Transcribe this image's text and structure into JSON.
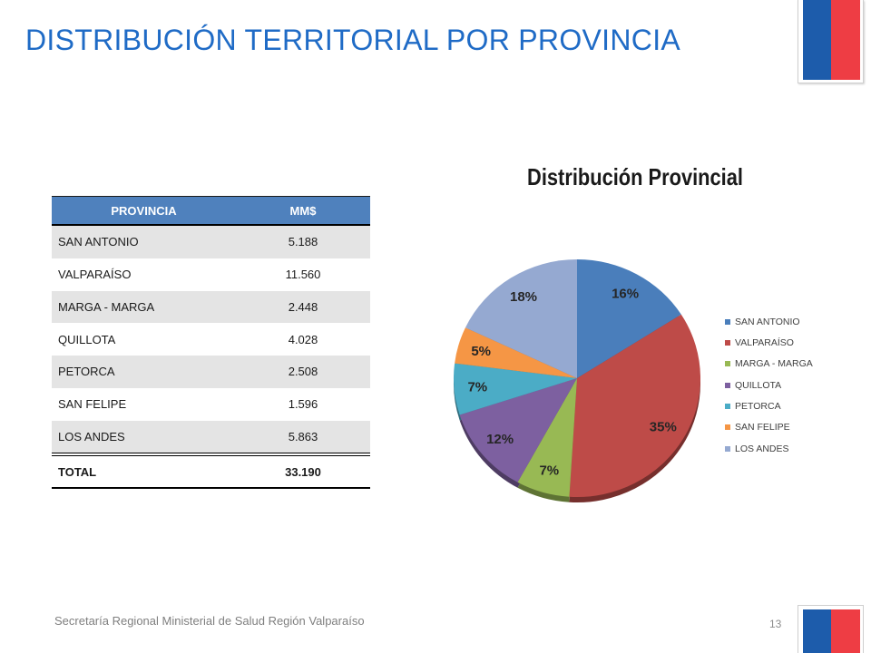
{
  "slide": {
    "title": "DISTRIBUCIÓN TERRITORIAL POR PROVINCIA"
  },
  "theme": {
    "accent": "#1F6BC6",
    "flag_blue": "#1D5CAB",
    "flag_red": "#EE3D44",
    "table_header": "#4F81BD",
    "table_band": "#E4E4E4"
  },
  "table": {
    "headers": [
      "PROVINCIA",
      "MM$"
    ],
    "rows": [
      [
        "SAN ANTONIO",
        "5.188"
      ],
      [
        "VALPARAÍSO",
        "11.560"
      ],
      [
        "MARGA - MARGA",
        "2.448"
      ],
      [
        "QUILLOTA",
        "4.028"
      ],
      [
        "PETORCA",
        "2.508"
      ],
      [
        "SAN FELIPE",
        "1.596"
      ],
      [
        "LOS ANDES",
        "5.863"
      ]
    ],
    "total": [
      "TOTAL",
      "33.190"
    ]
  },
  "chart_data": {
    "type": "pie",
    "three_d": true,
    "title": "Distribución Provincial",
    "categories": [
      "SAN ANTONIO",
      "VALPARAÍSO",
      "MARGA - MARGA",
      "QUILLOTA",
      "PETORCA",
      "SAN FELIPE",
      "LOS ANDES"
    ],
    "values": [
      16,
      35,
      7,
      12,
      7,
      5,
      18
    ],
    "data_labels": [
      "16%",
      "35%",
      "7%",
      "12%",
      "7%",
      "5%",
      "18%"
    ],
    "colors": [
      "#4A7EBB",
      "#BE4B48",
      "#98B954",
      "#7D60A0",
      "#4BACC6",
      "#F59645",
      "#95A9D1"
    ],
    "legend": "right"
  },
  "footer": {
    "text": "Secretaría Regional Ministerial de Salud Región Valparaíso",
    "page_number": "13"
  }
}
